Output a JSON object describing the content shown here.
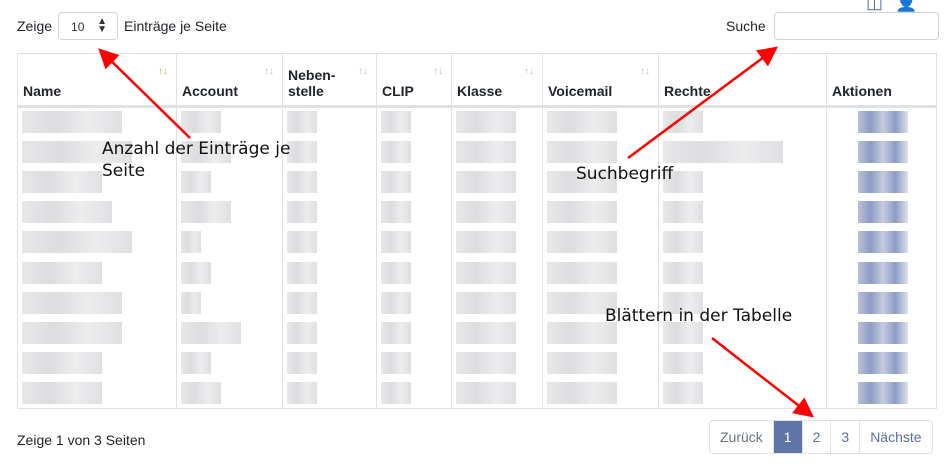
{
  "length": {
    "prefix": "Zeige",
    "value": "10",
    "suffix": "Einträge je Seite"
  },
  "search": {
    "label": "Suche",
    "value": ""
  },
  "toolbar": {
    "icons": [
      "columns-icon",
      "add-user-icon"
    ]
  },
  "table": {
    "columns": [
      {
        "label": "Name",
        "sorted": true
      },
      {
        "label": "Account"
      },
      {
        "label": "Neben-stelle"
      },
      {
        "label": "CLIP"
      },
      {
        "label": "Klasse"
      },
      {
        "label": "Voicemail"
      },
      {
        "label": "Rechte"
      },
      {
        "label": "Aktionen"
      }
    ],
    "row_count_visible": 10,
    "rows_blurred": true
  },
  "info": "Zeige 1 von 3 Seiten",
  "pagination": {
    "prev": "Zurück",
    "pages": [
      "1",
      "2",
      "3"
    ],
    "current": "1",
    "next": "Nächste"
  },
  "annotations": {
    "entries": "Anzahl der Einträge je Seite",
    "search": "Suchbegriff",
    "paging": "Blättern in der Tabelle",
    "color": "#ff0000"
  }
}
